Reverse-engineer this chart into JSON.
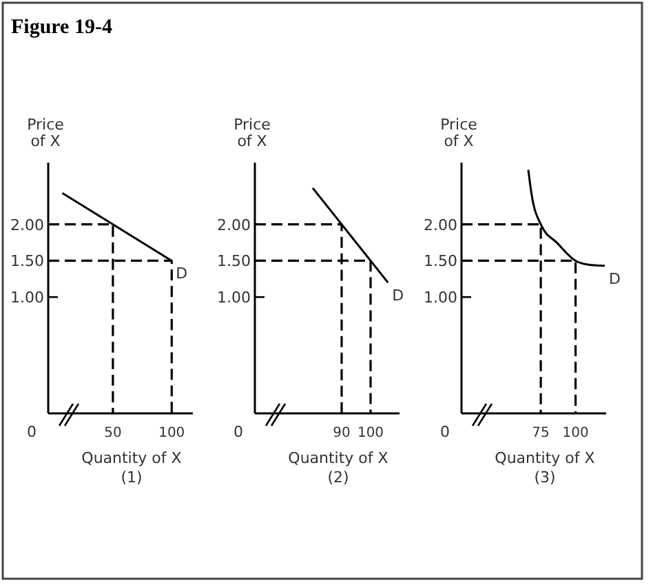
{
  "chart_data": [
    {
      "type": "line",
      "title": "Figure 19-4",
      "xlabel": "Quantity of X",
      "ylabel": "Price of X",
      "annotations": [
        "0",
        "(1)"
      ],
      "xlim": [
        -5,
        118
      ],
      "xticks": [
        50,
        100
      ],
      "ylim": [
        -0.6,
        2.85
      ],
      "yticks": [
        {
          "value": 1,
          "label": "1.00"
        },
        {
          "value": 1.5,
          "label": "1.50"
        },
        {
          "value": 2,
          "label": "2.00"
        }
      ],
      "series": [
        {
          "name": "D",
          "color": "#000000",
          "x": [
            7,
            100
          ],
          "values": [
            2.43,
            1.5
          ]
        },
        {
          "color": "#000000",
          "line_style": "dashed",
          "x": [
            -5,
            50,
            50
          ],
          "values": [
            2,
            2,
            -0.6
          ]
        },
        {
          "color": "#000000",
          "line_style": "dashed",
          "x": [
            -5,
            100,
            100
          ],
          "values": [
            1.5,
            1.5,
            -0.6
          ]
        }
      ]
    },
    {
      "type": "line",
      "xlabel": "Quantity of X",
      "ylabel": "Price of X",
      "annotations": [
        "0",
        "(2)"
      ],
      "xlim": [
        60,
        110
      ],
      "xticks": [
        90,
        100
      ],
      "ylim": [
        -0.6,
        2.85
      ],
      "yticks": [
        {
          "value": 1,
          "label": "1.00"
        },
        {
          "value": 1.5,
          "label": "1.50"
        },
        {
          "value": 2,
          "label": "2.00"
        }
      ],
      "series": [
        {
          "name": "D",
          "color": "#000000",
          "x": [
            80,
            90,
            100,
            106
          ],
          "values": [
            2.5,
            2,
            1.5,
            1.2
          ]
        },
        {
          "color": "#000000",
          "line_style": "dashed",
          "x": [
            60,
            90,
            90
          ],
          "values": [
            2,
            2,
            -0.6
          ]
        },
        {
          "color": "#000000",
          "line_style": "dashed",
          "x": [
            60,
            100,
            100
          ],
          "values": [
            1.5,
            1.5,
            -0.6
          ]
        }
      ]
    },
    {
      "type": "line",
      "xlabel": "Quantity of X",
      "ylabel": "Price of X",
      "annotations": [
        "0",
        "(3)"
      ],
      "xlim": [
        18,
        122
      ],
      "xticks": [
        75,
        100
      ],
      "ylim": [
        -0.6,
        2.85
      ],
      "yticks": [
        {
          "value": 1,
          "label": "1.00"
        },
        {
          "value": 1.5,
          "label": "1.50"
        },
        {
          "value": 2,
          "label": "2.00"
        }
      ],
      "series": [
        {
          "name": "D",
          "color": "#000000",
          "x": [
            66,
            68.5,
            75,
            87,
            100,
            108,
            121
          ],
          "values": [
            2.75,
            2.4,
            2,
            1.74,
            1.5,
            1.45,
            1.43
          ]
        },
        {
          "color": "#000000",
          "line_style": "dashed",
          "x": [
            18,
            75,
            75
          ],
          "values": [
            2,
            2,
            -0.6
          ]
        },
        {
          "color": "#000000",
          "line_style": "dashed",
          "x": [
            18,
            100,
            100
          ],
          "values": [
            1.5,
            1.5,
            -0.6
          ]
        }
      ]
    }
  ]
}
